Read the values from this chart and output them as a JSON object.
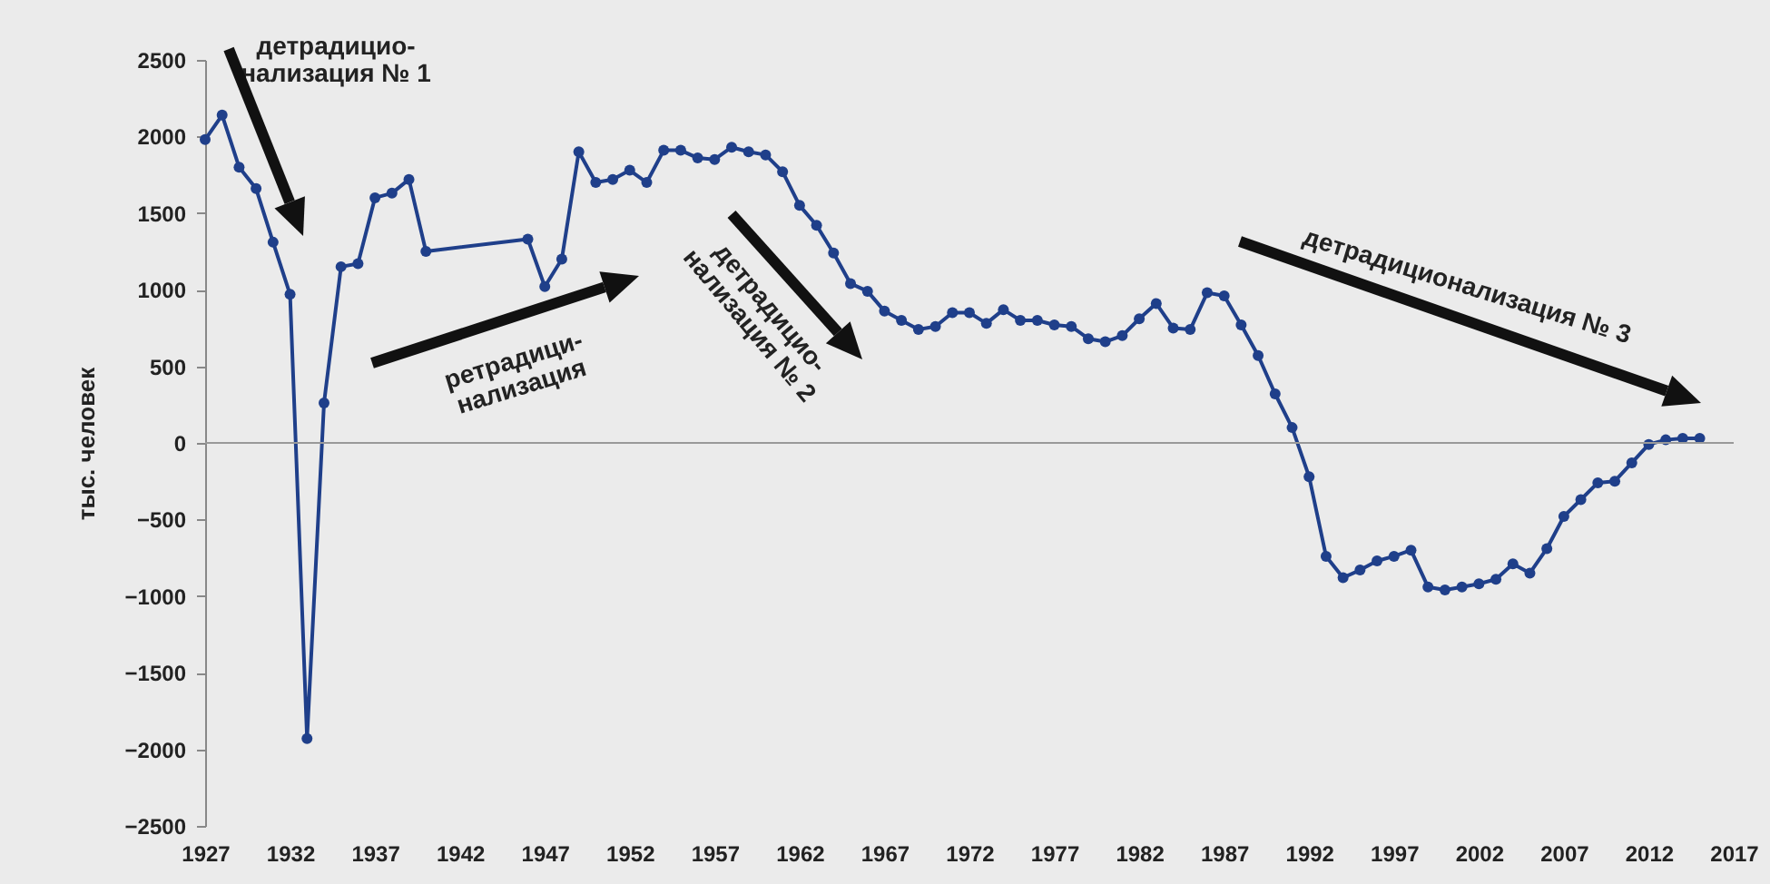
{
  "chart_data": {
    "type": "line",
    "ylabel": "тыс. человек",
    "x": [
      1927,
      1928,
      1929,
      1930,
      1931,
      1932,
      1933,
      1934,
      1935,
      1936,
      1937,
      1938,
      1939,
      1940,
      1946,
      1947,
      1948,
      1949,
      1950,
      1951,
      1952,
      1953,
      1954,
      1955,
      1956,
      1957,
      1958,
      1959,
      1960,
      1961,
      1962,
      1963,
      1964,
      1965,
      1966,
      1967,
      1968,
      1969,
      1970,
      1971,
      1972,
      1973,
      1974,
      1975,
      1976,
      1977,
      1978,
      1979,
      1980,
      1981,
      1982,
      1983,
      1984,
      1985,
      1986,
      1987,
      1988,
      1989,
      1990,
      1991,
      1992,
      1993,
      1994,
      1995,
      1996,
      1997,
      1998,
      1999,
      2000,
      2001,
      2002,
      2003,
      2004,
      2005,
      2006,
      2007,
      2008,
      2009,
      2010,
      2011,
      2012,
      2013,
      2014,
      2015
    ],
    "series": [
      {
        "color": "#1f3f8a",
        "values": [
          1980,
          2140,
          1800,
          1660,
          1310,
          970,
          -1930,
          260,
          1150,
          1170,
          1600,
          1630,
          1720,
          1250,
          1330,
          1020,
          1200,
          1900,
          1700,
          1720,
          1780,
          1700,
          1910,
          1910,
          1860,
          1850,
          1930,
          1900,
          1880,
          1770,
          1550,
          1420,
          1240,
          1040,
          990,
          860,
          800,
          740,
          760,
          850,
          850,
          780,
          870,
          800,
          800,
          770,
          760,
          680,
          660,
          700,
          810,
          910,
          750,
          740,
          980,
          960,
          770,
          570,
          320,
          100,
          -220,
          -740,
          -880,
          -830,
          -770,
          -740,
          -700,
          -940,
          -960,
          -940,
          -920,
          -890,
          -790,
          -850,
          -690,
          -480,
          -370,
          -260,
          -250,
          -130,
          -10,
          20,
          30,
          30
        ]
      }
    ],
    "xlim": [
      1927,
      2017
    ],
    "xticks": [
      1927,
      1932,
      1937,
      1942,
      1947,
      1952,
      1957,
      1962,
      1967,
      1972,
      1977,
      1982,
      1987,
      1992,
      1997,
      2002,
      2007,
      2012,
      2017
    ],
    "ylim": [
      -2500,
      2500
    ],
    "yticks": [
      -2500,
      -2000,
      -1500,
      -1000,
      -500,
      0,
      500,
      1000,
      1500,
      2000,
      2500
    ],
    "marker": "circle",
    "line_style": "solid",
    "annotations": [
      "детрадицио-\nнализация № 1",
      "ретрадици-\nнализация",
      "детрадицио-\nнализация № 2",
      "детрадиционализация № 3"
    ]
  }
}
